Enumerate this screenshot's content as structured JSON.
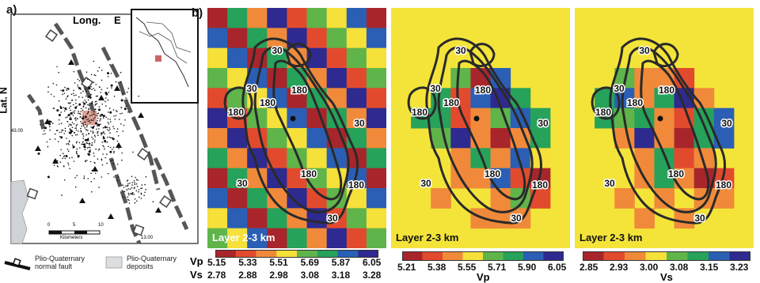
{
  "panel_a": {
    "label": "a)",
    "long_label": "Long.",
    "e_label": "E",
    "lat_label": "Lat. N",
    "lat_tick": "43.00",
    "scale_label": "Kilometers",
    "scale_ticks": [
      "0",
      "5",
      "10"
    ],
    "lon_tick": "13.00",
    "legend_fault_1": "Plio-Quaternary",
    "legend_fault_2": "normal fault",
    "legend_dep_1": "Plio-Quaternary",
    "legend_dep_2": "deposits"
  },
  "panel_b": {
    "label": "b)",
    "layer_label": "Layer 2-3 km",
    "contour_labels": [
      "30",
      "180"
    ],
    "colors": {
      "c1": "#a8262b",
      "c2": "#e24a2e",
      "c3": "#f08a3a",
      "c4": "#f6e03a",
      "c5": "#5fb44a",
      "c6": "#26a25a",
      "c7": "#2a5fb5",
      "c8": "#2e2a8f",
      "bg": "#f4e43a"
    }
  },
  "colorbar_1": {
    "vp_name": "Vp",
    "vs_name": "Vs",
    "vp_ticks": [
      "5.15",
      "5.33",
      "5.51",
      "5.69",
      "5.87",
      "6.05"
    ],
    "vs_ticks": [
      "2.78",
      "2.88",
      "2.98",
      "3.08",
      "3.18",
      "3.28"
    ]
  },
  "colorbar_2": {
    "title": "Vp",
    "ticks": [
      "5.21",
      "5.38",
      "5.55",
      "5.71",
      "5.90",
      "6.05"
    ]
  },
  "colorbar_3": {
    "title": "Vs",
    "ticks": [
      "2.85",
      "2.93",
      "3.00",
      "3.08",
      "3.15",
      "3.23"
    ]
  }
}
